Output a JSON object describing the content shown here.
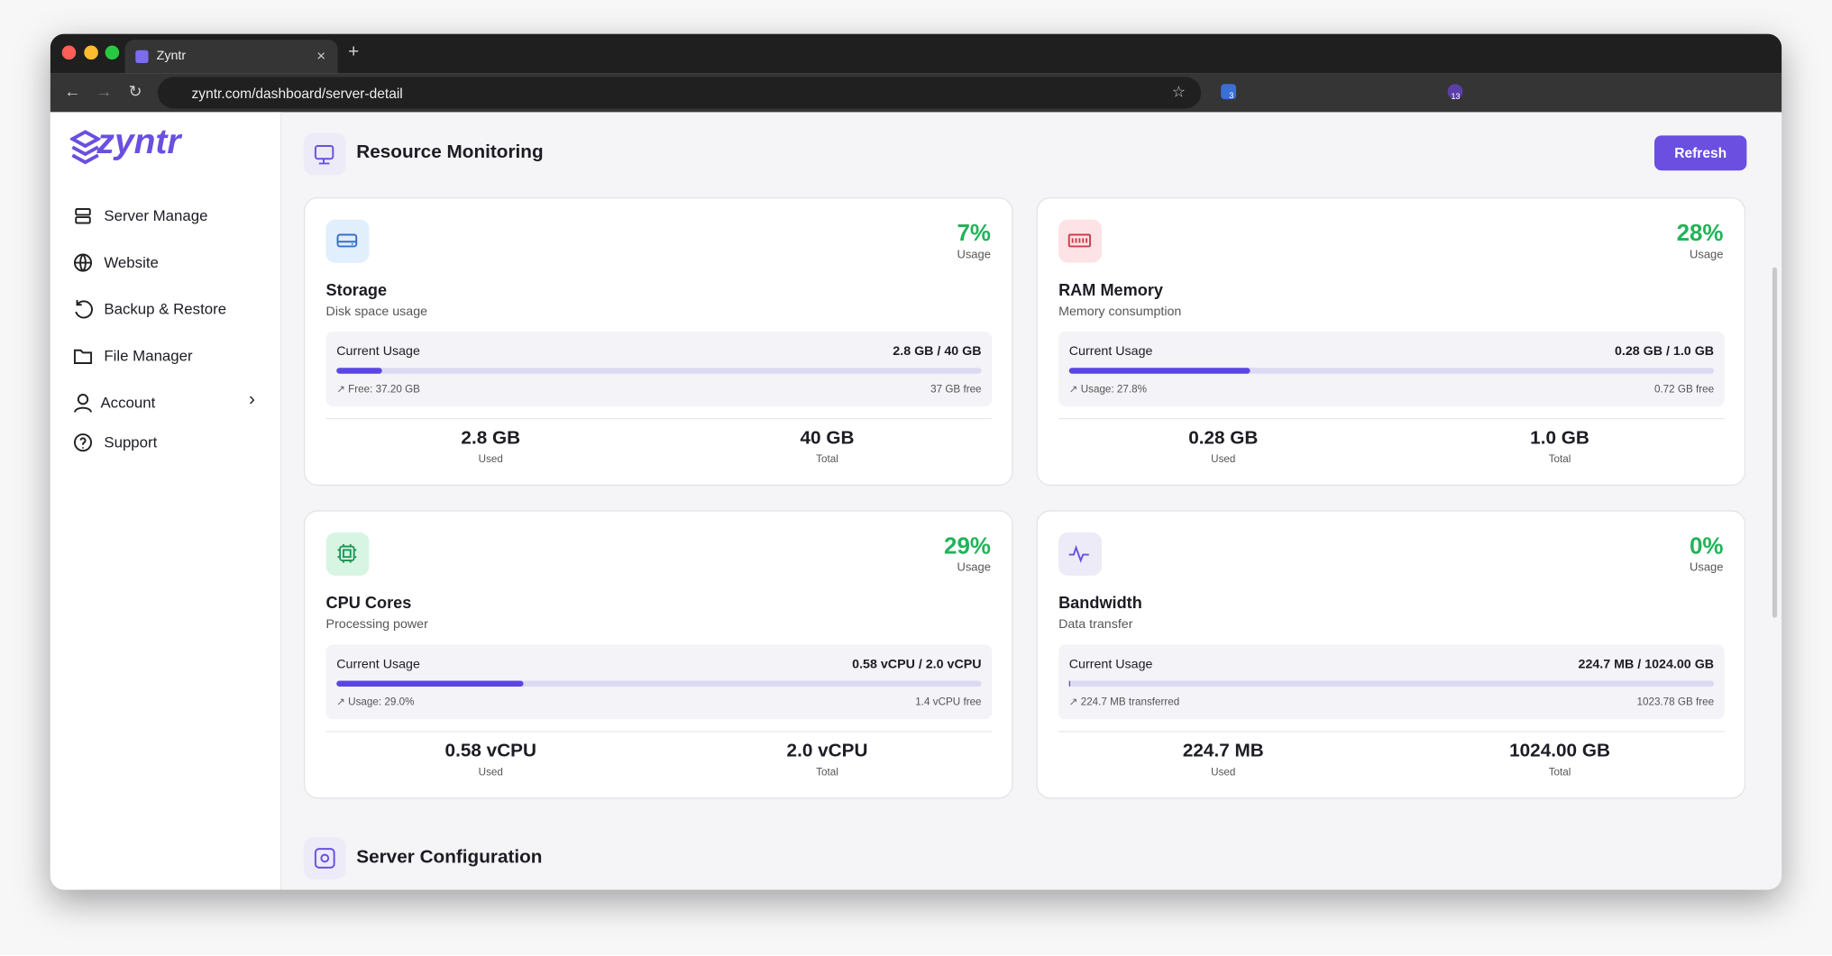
{
  "browser": {
    "tab_title": "Zyntr",
    "url": "zyntr.com/dashboard/server-detail",
    "badges": [
      "3",
      "13"
    ]
  },
  "sidebar": {
    "logo": "zyntr",
    "nav": [
      "Server Manage",
      "Website",
      "Backup & Restore",
      "File Manager",
      "Account",
      "Support"
    ]
  },
  "header": {
    "title": "Resource Monitoring",
    "button": "Refresh"
  },
  "cards": [
    {
      "title": "Storage",
      "subtitle": "Disk space usage",
      "percent": "7%",
      "percent_label": "Usage",
      "current_label": "Current Usage",
      "current_value": "2.8 GB / 40 GB",
      "left_note": "Free: 37.20 GB",
      "right_note": "37 GB free",
      "used_value": "2.8 GB",
      "used_label": "Used",
      "total_value": "40 GB",
      "total_label": "Total"
    },
    {
      "title": "RAM Memory",
      "subtitle": "Memory consumption",
      "percent": "28%",
      "percent_label": "Usage",
      "current_label": "Current Usage",
      "current_value": "0.28 GB / 1.0 GB",
      "left_note": "Usage: 27.8%",
      "right_note": "0.72 GB free",
      "used_value": "0.28 GB",
      "used_label": "Used",
      "total_value": "1.0 GB",
      "total_label": "Total"
    },
    {
      "title": "CPU Cores",
      "subtitle": "Processing power",
      "percent": "29%",
      "percent_label": "Usage",
      "current_label": "Current Usage",
      "current_value": "0.58 vCPU / 2.0 vCPU",
      "left_note": "Usage: 29.0%",
      "right_note": "1.4 vCPU free",
      "used_value": "0.58 vCPU",
      "used_label": "Used",
      "total_value": "2.0 vCPU",
      "total_label": "Total"
    },
    {
      "title": "Bandwidth",
      "subtitle": "Data transfer",
      "percent": "0%",
      "percent_label": "Usage",
      "current_label": "Current Usage",
      "current_value": "224.7 MB / 1024.00 GB",
      "left_note": "224.7 MB transferred",
      "right_note": "1023.78 GB free",
      "used_value": "224.7 MB",
      "used_label": "Used",
      "total_value": "1024.00 GB",
      "total_label": "Total"
    }
  ],
  "section2": {
    "title": "Server Configuration"
  }
}
